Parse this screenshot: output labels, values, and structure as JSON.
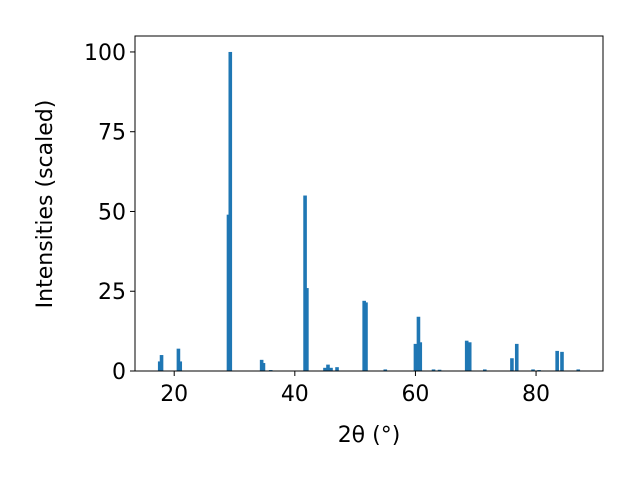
{
  "chart_data": {
    "type": "bar",
    "xlabel": "2θ (°)",
    "ylabel": "Intensities (scaled)",
    "x": [
      17.6,
      17.9,
      20.7,
      21.0,
      29.0,
      29.3,
      34.5,
      34.8,
      36.0,
      41.7,
      42.0,
      45.0,
      45.5,
      46.0,
      47.0,
      51.5,
      51.8,
      55.0,
      60.0,
      60.5,
      60.8,
      63.0,
      64.0,
      68.5,
      69.0,
      71.5,
      76.0,
      76.8,
      79.5,
      80.5,
      83.5,
      84.3,
      87.0
    ],
    "values": [
      3,
      5,
      7,
      3,
      49,
      100,
      3.5,
      2.5,
      0.3,
      55,
      26,
      1,
      2,
      1,
      1.2,
      22,
      21.5,
      0.5,
      8.5,
      17,
      9,
      0.5,
      0.4,
      9.5,
      9,
      0.5,
      4,
      8.5,
      0.5,
      0.3,
      6.3,
      6,
      0.5
    ],
    "color": "#1f77b4",
    "xlim": [
      13.5,
      91.1
    ],
    "xticks": [
      20,
      40,
      60,
      80
    ],
    "ylim": [
      0,
      105
    ],
    "yticks": [
      0,
      25,
      50,
      75,
      100
    ]
  }
}
